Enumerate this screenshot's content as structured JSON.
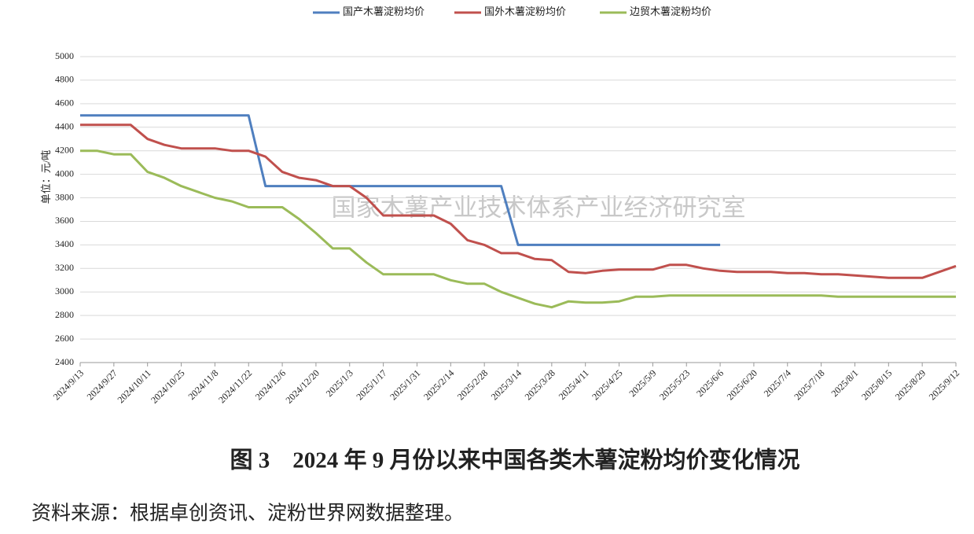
{
  "chart_data": {
    "type": "line",
    "y_label": "单位：元/吨",
    "watermark": "国家木薯产业技术体系产业经济研究室",
    "caption": "图 3　2024 年 9 月份以来中国各类木薯淀粉均价变化情况",
    "source": "资料来源：根据卓创资讯、淀粉世界网数据整理。",
    "categories": [
      "2024/9/13",
      null,
      "2024/9/27",
      null,
      "2024/10/11",
      null,
      "2024/10/25",
      null,
      "2024/11/8",
      null,
      "2024/11/22",
      null,
      "2024/12/6",
      null,
      "2024/12/20",
      null,
      "2025/1/3",
      null,
      "2025/1/17",
      null,
      "2025/1/31",
      null,
      "2025/2/14",
      null,
      "2025/2/28",
      null,
      "2025/3/14",
      null,
      "2025/3/28",
      null,
      "2025/4/11",
      null,
      "2025/4/25",
      null,
      "2025/5/9",
      null,
      "2025/5/23",
      null,
      "2025/6/6",
      null,
      "2025/6/20",
      null,
      "2025/7/4",
      null,
      "2025/7/18",
      null,
      "2025/8/1",
      null,
      "2025/8/15",
      null,
      "2025/8/29",
      null,
      "2025/9/12"
    ],
    "series": [
      {
        "name": "国产木薯淀粉均价",
        "color": "#4f7fbf",
        "values": [
          4500,
          4500,
          4500,
          4500,
          4500,
          4500,
          4500,
          4500,
          4500,
          4500,
          4500,
          3900,
          3900,
          3900,
          3900,
          3900,
          3900,
          3900,
          3900,
          3900,
          3900,
          3900,
          3900,
          3900,
          3900,
          3900,
          3400,
          3400,
          3400,
          3400,
          3400,
          3400,
          3400,
          3400,
          3400,
          3400,
          3400,
          3400,
          3400,
          null,
          null,
          null,
          null,
          null,
          null,
          null,
          null,
          null,
          null,
          null,
          null,
          null,
          null
        ]
      },
      {
        "name": "国外木薯淀粉均价",
        "color": "#c0504d",
        "values": [
          4420,
          4420,
          4420,
          4420,
          4300,
          4250,
          4220,
          4220,
          4220,
          4200,
          4200,
          4150,
          4020,
          3970,
          3950,
          3900,
          3900,
          3800,
          3650,
          3650,
          3650,
          3650,
          3580,
          3440,
          3400,
          3330,
          3330,
          3280,
          3270,
          3170,
          3160,
          3180,
          3190,
          3190,
          3190,
          3230,
          3230,
          3200,
          3180,
          3170,
          3170,
          3170,
          3160,
          3160,
          3150,
          3150,
          3140,
          3130,
          3120,
          3120,
          3120,
          3170,
          3220
        ]
      },
      {
        "name": "边贸木薯淀粉均价",
        "color": "#9bbb59",
        "values": [
          4200,
          4200,
          4170,
          4170,
          4020,
          3970,
          3900,
          3850,
          3800,
          3770,
          3720,
          3720,
          3720,
          3620,
          3500,
          3370,
          3370,
          3250,
          3150,
          3150,
          3150,
          3150,
          3100,
          3070,
          3070,
          3000,
          2950,
          2900,
          2870,
          2920,
          2910,
          2910,
          2920,
          2960,
          2960,
          2970,
          2970,
          2970,
          2970,
          2970,
          2970,
          2970,
          2970,
          2970,
          2970,
          2960,
          2960,
          2960,
          2960,
          2960,
          2960,
          2960,
          2960
        ]
      }
    ],
    "ylim": [
      2400,
      5000
    ],
    "yticks": [
      2400,
      2600,
      2800,
      3000,
      3200,
      3400,
      3600,
      3800,
      4000,
      4200,
      4400,
      4600,
      4800,
      5000
    ],
    "grid": true,
    "legend": "top"
  }
}
